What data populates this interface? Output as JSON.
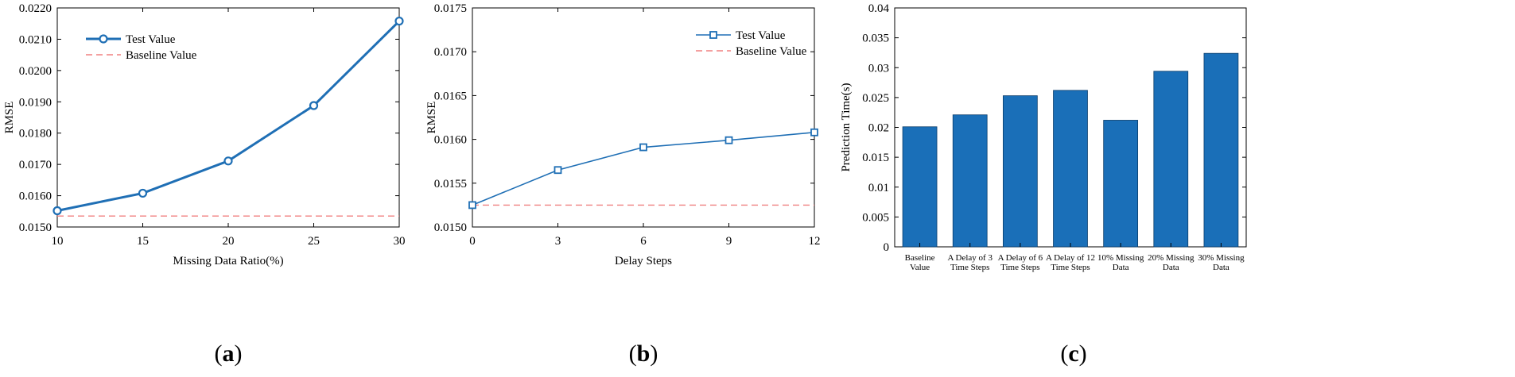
{
  "chart_data": [
    {
      "type": "line",
      "panel_label": "a",
      "xlabel": "Missing Data Ratio(%)",
      "ylabel": "RMSE",
      "xlim": [
        10,
        30
      ],
      "ylim": [
        0.015,
        0.022
      ],
      "xticks": [
        10,
        15,
        20,
        25,
        30
      ],
      "xtick_labels": [
        "10",
        "15",
        "20",
        "25",
        "30"
      ],
      "yticks": [
        0.015,
        0.016,
        0.017,
        0.018,
        0.019,
        0.02,
        0.021,
        0.022
      ],
      "ytick_labels": [
        "0.0150",
        "0.0160",
        "0.0170",
        "0.0180",
        "0.0190",
        "0.0200",
        "0.0210",
        "0.0220"
      ],
      "legend_position": "upper-left",
      "series": [
        {
          "name": "Test Value",
          "marker": "circle",
          "x": [
            10,
            15,
            20,
            25,
            30
          ],
          "values": [
            0.01552,
            0.01608,
            0.01711,
            0.01888,
            0.02158
          ]
        },
        {
          "name": "Baseline Value",
          "style": "dashed",
          "x": [
            10,
            30
          ],
          "values": [
            0.01535,
            0.01535
          ]
        }
      ],
      "colors": {
        "test": "#1f6fb5",
        "baseline": "#f08080"
      }
    },
    {
      "type": "line",
      "panel_label": "b",
      "xlabel": "Delay Steps",
      "ylabel": "RMSE",
      "xlim": [
        0,
        12
      ],
      "ylim": [
        0.015,
        0.0175
      ],
      "xticks": [
        0,
        3,
        6,
        9,
        12
      ],
      "xtick_labels": [
        "0",
        "3",
        "6",
        "9",
        "12"
      ],
      "yticks": [
        0.015,
        0.0155,
        0.016,
        0.0165,
        0.017,
        0.0175
      ],
      "ytick_labels": [
        "0.0150",
        "0.0155",
        "0.0160",
        "0.0165",
        "0.0170",
        "0.0175"
      ],
      "legend_position": "upper-right",
      "series": [
        {
          "name": "Test Value",
          "marker": "square",
          "x": [
            0,
            3,
            6,
            9,
            12
          ],
          "values": [
            0.01525,
            0.01565,
            0.01591,
            0.01599,
            0.01608
          ]
        },
        {
          "name": "Baseline Value",
          "style": "dashed",
          "x": [
            0,
            12
          ],
          "values": [
            0.01525,
            0.01525
          ]
        }
      ],
      "colors": {
        "test": "#1f6fb5",
        "baseline": "#f08080"
      }
    },
    {
      "type": "bar",
      "panel_label": "c",
      "xlabel": "",
      "ylabel": "Prediction Time(s)",
      "ylim": [
        0,
        0.04
      ],
      "yticks": [
        0,
        0.005,
        0.01,
        0.015,
        0.02,
        0.025,
        0.03,
        0.035,
        0.04
      ],
      "ytick_labels": [
        "0",
        "0.005",
        "0.01",
        "0.015",
        "0.02",
        "0.025",
        "0.03",
        "0.035",
        "0.04"
      ],
      "categories": [
        [
          "Baseline",
          "Value"
        ],
        [
          "A Delay of 3",
          "Time Steps"
        ],
        [
          "A Delay of 6",
          "Time Steps"
        ],
        [
          "A Delay of 12",
          "Time Steps"
        ],
        [
          "10% Missing",
          "Data"
        ],
        [
          "20% Missing",
          "Data"
        ],
        [
          "30% Missing",
          "Data"
        ]
      ],
      "values": [
        0.0201,
        0.0221,
        0.0253,
        0.0262,
        0.0212,
        0.0294,
        0.0324
      ],
      "colors": {
        "bar": "#1a6fb8"
      }
    }
  ]
}
